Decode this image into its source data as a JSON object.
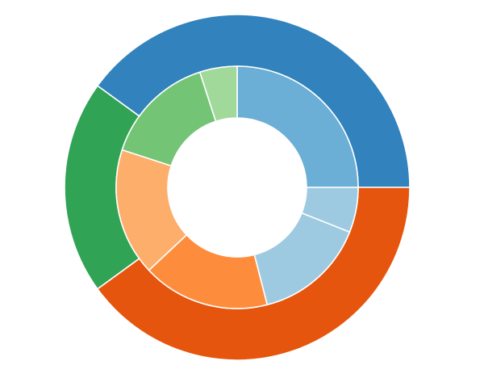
{
  "chart_data": {
    "type": "sunburst",
    "title": "",
    "legend": "none",
    "rings": [
      {
        "level": "outer",
        "series": [
          {
            "value": 40,
            "color": "#3182bd"
          },
          {
            "value": 20,
            "color": "#31a354"
          },
          {
            "value": 40,
            "color": "#e6550d"
          }
        ]
      },
      {
        "level": "inner",
        "series": [
          {
            "value": 25,
            "color": "#6baed6"
          },
          {
            "value": 5,
            "color": "#a1d99b"
          },
          {
            "value": 15,
            "color": "#74c476"
          },
          {
            "value": 17,
            "color": "#fdae6b"
          },
          {
            "value": 17,
            "color": "#fd8d3c"
          },
          {
            "value": 15,
            "color": "#9ecae1"
          },
          {
            "value": 6,
            "color": "#9ecae1"
          }
        ]
      }
    ]
  }
}
